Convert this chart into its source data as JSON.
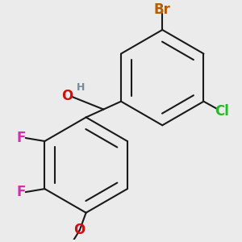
{
  "bg_color": "#ebebeb",
  "bond_color": "#1a1a1a",
  "bond_width": 1.5,
  "atom_colors": {
    "Br": "#b85c00",
    "Cl": "#22bb22",
    "F": "#cc33aa",
    "O": "#cc1111",
    "H": "#778899",
    "C": "#1a1a1a"
  },
  "ring_r": 0.3,
  "inner_r": 0.235,
  "inner_trim": 0.12,
  "font_size": 12,
  "font_size_h": 9
}
